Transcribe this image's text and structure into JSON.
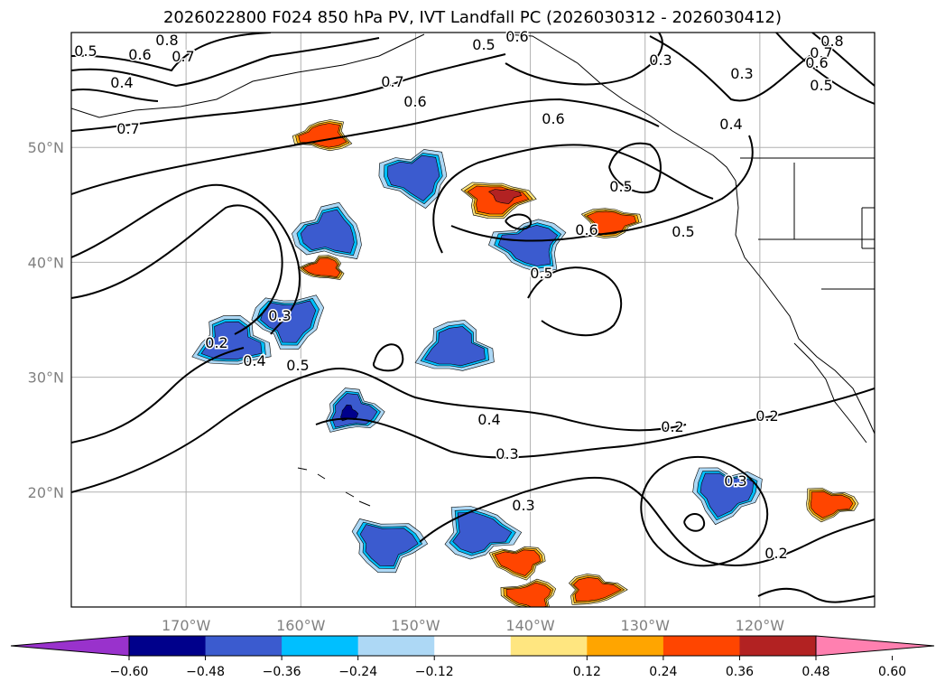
{
  "title": "2026022800 F024 850 hPa PV, IVT Landfall PC (2026030312 - 2026030412)",
  "map": {
    "lat_range": [
      10,
      60
    ],
    "lon_range": [
      -180,
      -110
    ],
    "lat_labels": [
      "20°N",
      "30°N",
      "40°N",
      "50°N"
    ],
    "lon_labels": [
      "170°W",
      "160°W",
      "150°W",
      "140°W",
      "130°W",
      "120°W"
    ],
    "gridlines": true
  },
  "colorbar": {
    "ticks": [
      "−0.60",
      "−0.48",
      "−0.36",
      "−0.24",
      "−0.12",
      "0.12",
      "0.24",
      "0.36",
      "0.48",
      "0.60"
    ],
    "colors": [
      "#9932cc",
      "#00008b",
      "#3b5bcf",
      "#00bfff",
      "#add8f5",
      "#ffffff",
      "#ffe680",
      "#ffa500",
      "#ff4500",
      "#b22222",
      "#ff80b0"
    ],
    "extend": "both"
  },
  "contour_labels": {
    "values": [
      "0.8",
      "0.5",
      "0.6",
      "0.7",
      "0.4",
      "0.7",
      "0.7",
      "0.6",
      "0.5",
      "0.6",
      "0.3",
      "0.8",
      "0.7",
      "0.6",
      "0.5",
      "0.3",
      "0.6",
      "0.4",
      "0.5",
      "0.6",
      "0.5",
      "0.5",
      "0.3",
      "0.2",
      "0.4",
      "0.5",
      "0.4",
      "0.3",
      "0.3",
      "0.2",
      "0.2",
      "0.3",
      "0.2"
    ]
  },
  "shading": {
    "neg_patches": [
      {
        "lon": -166.0,
        "lat": 33.0,
        "level": 3
      },
      {
        "lon": -155.5,
        "lat": 27.0,
        "level": 2
      },
      {
        "lon": -157.5,
        "lat": 42.5,
        "level": 3
      },
      {
        "lon": -144.5,
        "lat": 16.5,
        "level": 3
      },
      {
        "lon": -146.5,
        "lat": 32.5,
        "level": 3
      },
      {
        "lon": -123.0,
        "lat": 20.0,
        "level": 3
      },
      {
        "lon": -150.0,
        "lat": 47.5,
        "level": 3
      },
      {
        "lon": -140.0,
        "lat": 41.5,
        "level": 3
      },
      {
        "lon": -161.0,
        "lat": 35.0,
        "level": 3
      },
      {
        "lon": -152.5,
        "lat": 15.5,
        "level": 3
      }
    ],
    "pos_patches": [
      {
        "lon": -143.0,
        "lat": 45.5,
        "level": 4
      },
      {
        "lon": -133.0,
        "lat": 43.5,
        "level": 3
      },
      {
        "lon": -141.0,
        "lat": 14.0,
        "level": 3
      },
      {
        "lon": -158.0,
        "lat": 51.0,
        "level": 3
      },
      {
        "lon": -114.0,
        "lat": 19.0,
        "level": 3
      },
      {
        "lon": -134.5,
        "lat": 11.5,
        "level": 3
      },
      {
        "lon": -158.0,
        "lat": 39.5,
        "level": 2
      },
      {
        "lon": -140.0,
        "lat": 11.0,
        "level": 3
      }
    ]
  }
}
